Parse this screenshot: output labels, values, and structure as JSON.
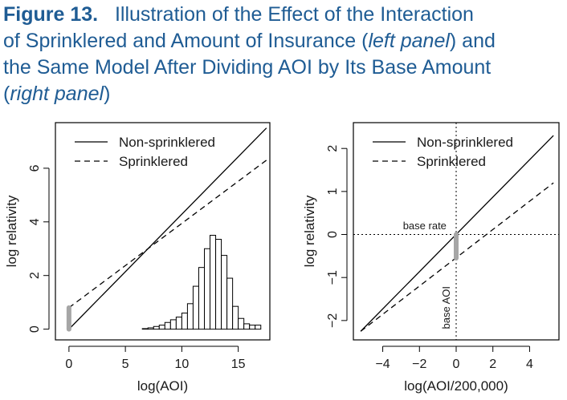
{
  "figure": {
    "label": "Figure 13.",
    "caption_lines": [
      [
        {
          "text": "Illustration of the Effect of the Interaction",
          "italic": false
        }
      ],
      [
        {
          "text": "of Sprinklered and Amount of Insurance (",
          "italic": false
        },
        {
          "text": "left panel",
          "italic": true
        },
        {
          "text": ") and",
          "italic": false
        }
      ],
      [
        {
          "text": "the Same Model After Dividing AOI by Its Base Amount",
          "italic": false
        }
      ],
      [
        {
          "text": "(",
          "italic": false
        },
        {
          "text": "right panel",
          "italic": true
        },
        {
          "text": ")",
          "italic": false
        }
      ]
    ],
    "caption_color": "#1f5c94"
  },
  "chart_data": [
    {
      "type": "line",
      "panel": "left",
      "xlabel": "log(AOI)",
      "ylabel": "log relativity",
      "xlim": [
        -1.2,
        17.8
      ],
      "ylim": [
        -0.4,
        7.7
      ],
      "x_ticks": [
        0,
        5,
        10,
        15
      ],
      "y_ticks": [
        0,
        2,
        4,
        6
      ],
      "legend": {
        "position": "top-left",
        "entries": [
          {
            "label": "Non-sprinklered",
            "style": "solid"
          },
          {
            "label": "Sprinklered",
            "style": "dashed"
          }
        ]
      },
      "series": [
        {
          "name": "Non-sprinklered",
          "style": "solid",
          "x": [
            0,
            17.5
          ],
          "y": [
            0,
            7.5
          ]
        },
        {
          "name": "Sprinklered",
          "style": "dashed",
          "x": [
            0,
            17.5
          ],
          "y": [
            0.8,
            6.3
          ]
        }
      ],
      "highlight_segment": {
        "x": 0,
        "y": [
          0,
          0.8
        ],
        "color": "#a6a6a6"
      },
      "histogram": {
        "description": "distribution of log(AOI)",
        "bin_width": 0.5,
        "bin_starts": [
          6.5,
          7,
          7.5,
          8,
          8.5,
          9,
          9.5,
          10,
          10.5,
          11,
          11.5,
          12,
          12.5,
          13,
          13.5,
          14,
          14.5,
          15,
          15.5,
          16,
          16.5
        ],
        "heights": [
          0.02,
          0.05,
          0.1,
          0.15,
          0.25,
          0.35,
          0.45,
          0.6,
          0.95,
          1.6,
          2.3,
          3.0,
          3.5,
          3.35,
          2.75,
          1.9,
          0.85,
          0.4,
          0.2,
          0.15,
          0.15
        ]
      }
    },
    {
      "type": "line",
      "panel": "right",
      "xlabel": "log(AOI/200,000)",
      "ylabel": "log relativity",
      "xlim": [
        -5.6,
        5.6
      ],
      "ylim": [
        -2.45,
        2.6
      ],
      "x_ticks": [
        -4,
        -2,
        0,
        2,
        4
      ],
      "y_ticks": [
        -2,
        -1,
        0,
        1,
        2
      ],
      "legend": {
        "position": "top-left",
        "entries": [
          {
            "label": "Non-sprinklered",
            "style": "solid"
          },
          {
            "label": "Sprinklered",
            "style": "dashed"
          }
        ]
      },
      "series": [
        {
          "name": "Non-sprinklered",
          "style": "solid",
          "x": [
            -5.2,
            5.3
          ],
          "y": [
            -2.25,
            2.3
          ]
        },
        {
          "name": "Sprinklered",
          "style": "dashed",
          "x": [
            -5.2,
            5.3
          ],
          "y": [
            -2.25,
            1.2
          ]
        }
      ],
      "reference_lines": {
        "vertical_x": 0,
        "horizontal_y": 0
      },
      "annotations": [
        {
          "text": "base rate",
          "x": -2.9,
          "y": 0.12
        },
        {
          "text": "base AOI",
          "x": -0.35,
          "y": -1.7,
          "rotation": -90
        }
      ],
      "highlight_segment": {
        "x": 0,
        "y": [
          -0.55,
          0
        ],
        "color": "#a6a6a6"
      }
    }
  ]
}
